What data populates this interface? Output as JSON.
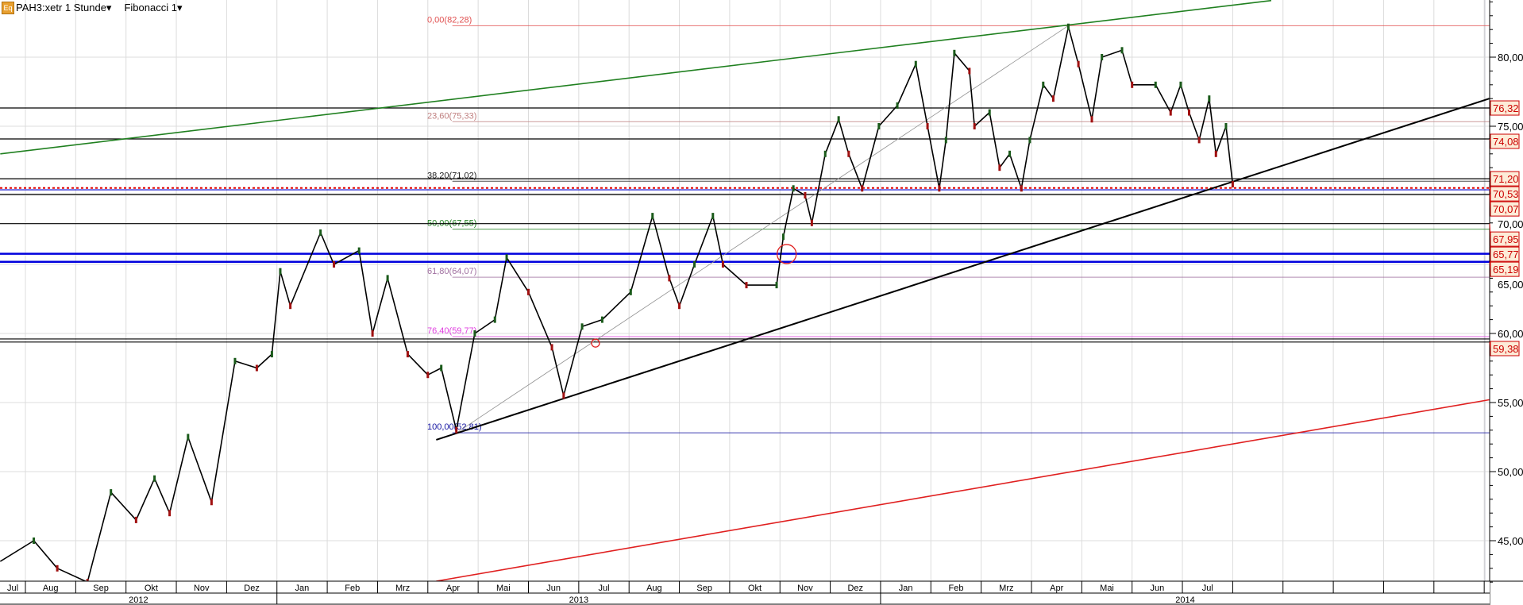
{
  "header": {
    "icon": "eq-icon",
    "icon_text": "Eq",
    "instrument": "PAH3:xetr 1 Stunde▾",
    "indicator": "Fibonacci 1▾"
  },
  "chart_data": {
    "type": "line",
    "title": "",
    "xlabel": "",
    "ylabel": "",
    "ylim": [
      41.9,
      84.3
    ],
    "y_ticks": [
      {
        "v": 80,
        "label": "80,00"
      },
      {
        "v": 75,
        "label": "75,00"
      },
      {
        "v": 70,
        "label": "70,00"
      },
      {
        "v": 65,
        "label": "65,00"
      },
      {
        "v": 60,
        "label": "60,00"
      },
      {
        "v": 55,
        "label": "55,00"
      },
      {
        "v": 50,
        "label": "50,00"
      },
      {
        "v": 45,
        "label": "45,00"
      }
    ],
    "months": [
      {
        "label": "Jul",
        "start": "2012-07-01"
      },
      {
        "label": "Aug",
        "start": "2012-08-01"
      },
      {
        "label": "Sep",
        "start": "2012-09-01"
      },
      {
        "label": "Okt",
        "start": "2012-10-01"
      },
      {
        "label": "Nov",
        "start": "2012-11-01"
      },
      {
        "label": "Dez",
        "start": "2012-12-01"
      },
      {
        "label": "Jan",
        "start": "2013-01-01"
      },
      {
        "label": "Feb",
        "start": "2013-02-01"
      },
      {
        "label": "Mrz",
        "start": "2013-03-01"
      },
      {
        "label": "Apr",
        "start": "2013-04-01"
      },
      {
        "label": "Mai",
        "start": "2013-05-01"
      },
      {
        "label": "Jun",
        "start": "2013-06-01"
      },
      {
        "label": "Jul",
        "start": "2013-07-01"
      },
      {
        "label": "Aug",
        "start": "2013-08-01"
      },
      {
        "label": "Sep",
        "start": "2013-09-01"
      },
      {
        "label": "Okt",
        "start": "2013-10-01"
      },
      {
        "label": "Nov",
        "start": "2013-11-01"
      },
      {
        "label": "Dez",
        "start": "2013-12-01"
      },
      {
        "label": "Jan",
        "start": "2014-01-01"
      },
      {
        "label": "Feb",
        "start": "2014-02-01"
      },
      {
        "label": "Mrz",
        "start": "2014-03-01"
      },
      {
        "label": "Apr",
        "start": "2014-04-01"
      },
      {
        "label": "Mai",
        "start": "2014-05-01"
      },
      {
        "label": "Jun",
        "start": "2014-06-01"
      },
      {
        "label": "Jul",
        "start": "2014-07-01"
      },
      {
        "label": "",
        "start": "2014-08-01"
      },
      {
        "label": "",
        "start": "2014-09-01"
      },
      {
        "label": "",
        "start": "2014-10-01"
      },
      {
        "label": "",
        "start": "2014-11-01"
      },
      {
        "label": "",
        "start": "2014-12-01"
      },
      {
        "label": "",
        "start": "2015-01-01"
      }
    ],
    "years": [
      {
        "label": "2012",
        "start": "2012-07-01",
        "end": "2013-01-01"
      },
      {
        "label": "2013",
        "start": "2013-01-01",
        "end": "2014-01-01"
      },
      {
        "label": "2014",
        "start": "2014-01-01",
        "end": "2015-01-05"
      }
    ],
    "series": [
      {
        "color": "#000000",
        "points": [
          [
            "2012-07-16",
            43.5
          ],
          [
            "2012-08-06",
            45.0
          ],
          [
            "2012-08-20",
            43.0
          ],
          [
            "2012-09-08",
            42.0
          ],
          [
            "2012-09-22",
            48.5
          ],
          [
            "2012-10-07",
            46.5
          ],
          [
            "2012-10-18",
            49.5
          ],
          [
            "2012-10-27",
            47.0
          ],
          [
            "2012-11-08",
            52.5
          ],
          [
            "2012-11-22",
            47.8
          ],
          [
            "2012-12-06",
            58.0
          ],
          [
            "2012-12-19",
            57.5
          ],
          [
            "2012-12-28",
            58.5
          ],
          [
            "2013-01-03",
            64.5
          ],
          [
            "2013-01-09",
            62.0
          ],
          [
            "2013-01-27",
            67.3
          ],
          [
            "2013-02-05",
            65.0
          ],
          [
            "2013-02-20",
            66.0
          ],
          [
            "2013-02-28",
            60.0
          ],
          [
            "2013-03-07",
            64.0
          ],
          [
            "2013-03-19",
            58.5
          ],
          [
            "2013-03-31",
            57.0
          ],
          [
            "2013-04-09",
            57.5
          ],
          [
            "2013-04-18",
            53.0
          ],
          [
            "2013-04-29",
            60.0
          ],
          [
            "2013-05-11",
            61.0
          ],
          [
            "2013-05-18",
            65.5
          ],
          [
            "2013-06-01",
            63.0
          ],
          [
            "2013-06-15",
            59.0
          ],
          [
            "2013-06-22",
            55.5
          ],
          [
            "2013-07-03",
            60.5
          ],
          [
            "2013-07-15",
            61.0
          ],
          [
            "2013-08-02",
            63.0
          ],
          [
            "2013-08-15",
            68.5
          ],
          [
            "2013-08-25",
            64.0
          ],
          [
            "2013-09-01",
            62.0
          ],
          [
            "2013-09-10",
            65.0
          ],
          [
            "2013-09-21",
            68.5
          ],
          [
            "2013-09-27",
            65.0
          ],
          [
            "2013-10-11",
            63.5
          ],
          [
            "2013-10-29",
            63.5
          ],
          [
            "2013-11-03",
            67.0
          ],
          [
            "2013-11-09",
            70.5
          ],
          [
            "2013-11-16",
            70.0
          ],
          [
            "2013-11-20",
            68.0
          ],
          [
            "2013-11-28",
            73.0
          ],
          [
            "2013-12-06",
            75.5
          ],
          [
            "2013-12-12",
            73.0
          ],
          [
            "2013-12-20",
            70.5
          ],
          [
            "2013-12-30",
            75.0
          ],
          [
            "2014-01-11",
            76.5
          ],
          [
            "2014-01-22",
            79.5
          ],
          [
            "2014-01-29",
            75.0
          ],
          [
            "2014-02-06",
            70.5
          ],
          [
            "2014-02-10",
            74.0
          ],
          [
            "2014-02-15",
            80.3
          ],
          [
            "2014-02-24",
            79.0
          ],
          [
            "2014-02-27",
            75.0
          ],
          [
            "2014-03-06",
            76.0
          ],
          [
            "2014-03-12",
            72.0
          ],
          [
            "2014-03-18",
            73.0
          ],
          [
            "2014-03-25",
            70.5
          ],
          [
            "2014-03-30",
            74.0
          ],
          [
            "2014-04-08",
            78.0
          ],
          [
            "2014-04-14",
            77.0
          ],
          [
            "2014-04-23",
            82.2
          ],
          [
            "2014-04-29",
            79.5
          ],
          [
            "2014-05-07",
            75.5
          ],
          [
            "2014-05-13",
            80.0
          ],
          [
            "2014-05-25",
            80.5
          ],
          [
            "2014-05-31",
            78.0
          ],
          [
            "2014-06-15",
            78.0
          ],
          [
            "2014-06-24",
            76.0
          ],
          [
            "2014-06-30",
            78.0
          ],
          [
            "2014-07-05",
            76.0
          ],
          [
            "2014-07-11",
            74.0
          ],
          [
            "2014-07-17",
            77.0
          ],
          [
            "2014-07-21",
            73.0
          ],
          [
            "2014-07-27",
            75.0
          ],
          [
            "2014-08-01",
            70.8
          ]
        ]
      }
    ],
    "fibonacci": {
      "from": "2013-04-18",
      "levels": [
        {
          "label": "0,00(82,28)",
          "v": 82.28,
          "color": "#e05050"
        },
        {
          "label": "23,60(75,33)",
          "v": 75.33,
          "color": "#c08080"
        },
        {
          "label": "38,20(71,02)",
          "v": 71.02,
          "color": "#222222"
        },
        {
          "label": "50,00(67,55)",
          "v": 67.55,
          "color": "#208020"
        },
        {
          "label": "61,80(64,07)",
          "v": 64.07,
          "color": "#a070a0"
        },
        {
          "label": "76,40(59,77)",
          "v": 59.77,
          "color": "#e040e0"
        },
        {
          "label": "100,00(52,81)",
          "v": 52.81,
          "color": "#1010a0"
        }
      ]
    },
    "horizontal_lines": [
      {
        "v": 76.32,
        "color": "#000000",
        "label": "76,32"
      },
      {
        "v": 74.08,
        "color": "#000000",
        "label": "74,08"
      },
      {
        "v": 71.2,
        "color": "#000000",
        "label": "71,20"
      },
      {
        "v": 70.53,
        "color": "#e00000",
        "style": "dotted",
        "label": "70,53"
      },
      {
        "v": 70.4,
        "color": "#0000cc"
      },
      {
        "v": 70.07,
        "color": "#000000",
        "label": "70,07"
      },
      {
        "v": 67.95,
        "color": "#000000",
        "label": "67,95"
      },
      {
        "v": 65.77,
        "color": "#0000dd",
        "thick": true,
        "label": "65,77"
      },
      {
        "v": 65.19,
        "color": "#0000dd",
        "thick": true,
        "label": "65,19"
      },
      {
        "v": 59.6,
        "color": "#000000"
      },
      {
        "v": 59.38,
        "color": "#000000",
        "label": "59,38"
      }
    ],
    "trendlines": [
      {
        "color": "#208020",
        "from": [
          "2012-07-16",
          73.0
        ],
        "to": [
          "2014-08-24",
          84.1
        ]
      },
      {
        "color": "#909090",
        "thin": true,
        "from": [
          "2013-04-18",
          52.8
        ],
        "to": [
          "2014-04-23",
          82.28
        ]
      },
      {
        "color": "#000000",
        "thick": true,
        "from": [
          "2013-04-06",
          52.3
        ],
        "to": [
          "2015-01-04",
          77.0
        ]
      },
      {
        "color": "#e02020",
        "from": [
          "2013-04-06",
          42.07
        ],
        "to": [
          "2015-01-04",
          55.2
        ]
      }
    ],
    "markers": [
      {
        "type": "circle",
        "at": [
          "2013-11-05",
          65.75
        ],
        "color": "#e02020"
      },
      {
        "type": "circle-small",
        "at": [
          "2013-07-11",
          59.3
        ],
        "color": "#e02020"
      }
    ],
    "grid": true,
    "label_color": "#cc0000",
    "label_bg": "#fdecd8"
  }
}
